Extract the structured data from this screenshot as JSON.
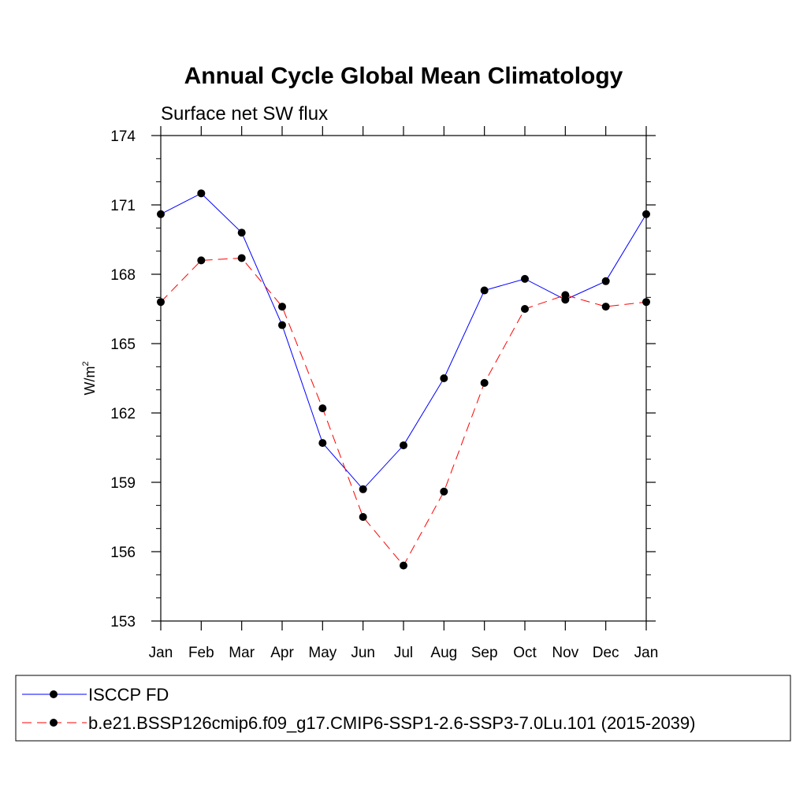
{
  "chart_data": {
    "type": "line",
    "title": "Annual Cycle Global Mean Climatology",
    "subtitle": "Surface net SW flux",
    "ylabel": "W/m",
    "ylabel_superscript": "2",
    "ylim": [
      153,
      174
    ],
    "yticks": [
      "153",
      "156",
      "159",
      "162",
      "165",
      "168",
      "171",
      "174"
    ],
    "categories": [
      "Jan",
      "Feb",
      "Mar",
      "Apr",
      "May",
      "Jun",
      "Jul",
      "Aug",
      "Sep",
      "Oct",
      "Nov",
      "Dec",
      "Jan"
    ],
    "grid": false,
    "legend_position": "bottom",
    "series": [
      {
        "name": "ISCCP FD",
        "color": "#0000ff",
        "dash": "solid",
        "values": [
          170.6,
          171.5,
          169.8,
          165.8,
          160.7,
          158.7,
          160.6,
          163.5,
          167.3,
          167.8,
          166.9,
          167.7,
          170.6
        ]
      },
      {
        "name": "b.e21.BSSP126cmip6.f09_g17.CMIP6-SSP1-2.6-SSP3-7.0Lu.101 (2015-2039)",
        "color": "#ff0000",
        "dash": "dashed",
        "values": [
          166.8,
          168.6,
          168.7,
          166.6,
          162.2,
          157.5,
          155.4,
          158.6,
          163.3,
          166.5,
          167.1,
          166.6,
          166.8
        ]
      }
    ]
  }
}
